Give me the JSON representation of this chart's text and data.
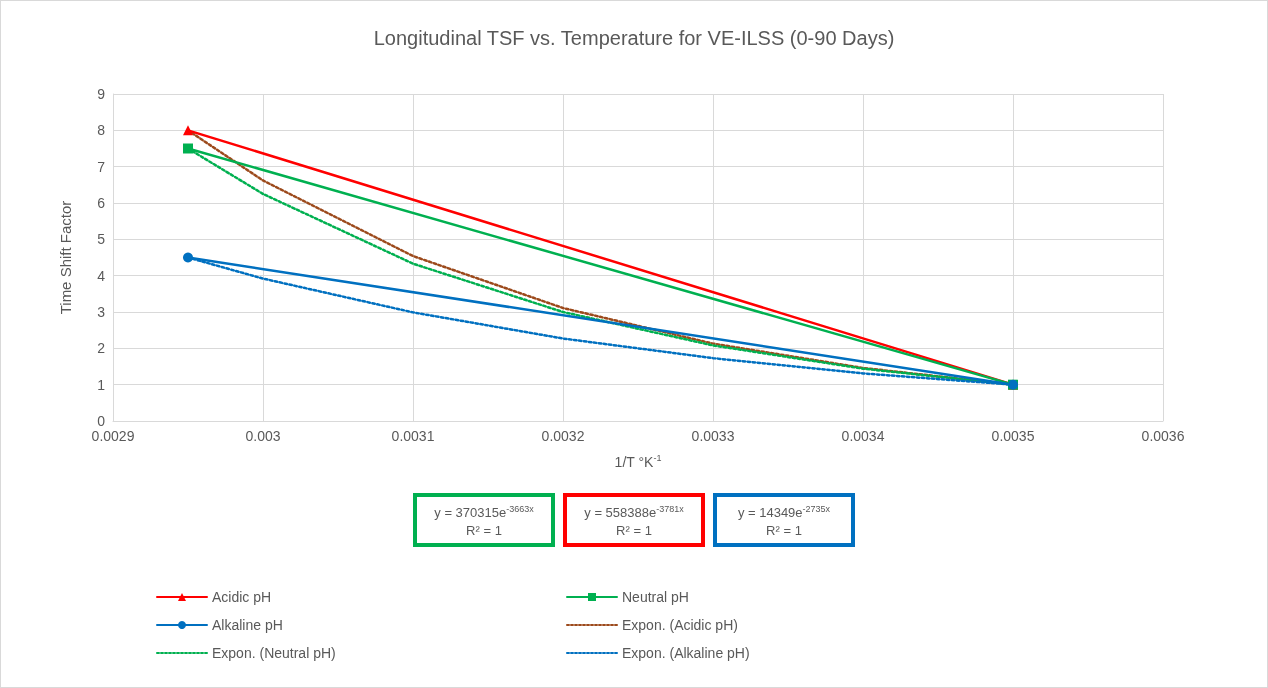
{
  "chart_data": {
    "type": "line",
    "title": "Longitudinal TSF vs. Temperature for VE-ILSS (0-90 Days)",
    "xlabel": "1/T °K$^{-1}$",
    "ylabel": "Time Shift Factor",
    "xlim": [
      0.0029,
      0.0036
    ],
    "xticks": [
      0.0029,
      0.003,
      0.0031,
      0.0032,
      0.0033,
      0.0034,
      0.0035,
      0.0036
    ],
    "ylim": [
      0,
      9
    ],
    "yticks": [
      0,
      1,
      2,
      3,
      4,
      5,
      6,
      7,
      8,
      9
    ],
    "grid": true,
    "legend": "bottom",
    "series": [
      {
        "name": "Acidic pH",
        "color": "#ff0000",
        "marker": "triangle",
        "line_style": "solid",
        "x": [
          0.00295,
          0.0035
        ],
        "values": [
          8,
          1
        ]
      },
      {
        "name": "Neutral pH",
        "color": "#00b050",
        "marker": "square",
        "line_style": "solid",
        "x": [
          0.00295,
          0.0035
        ],
        "values": [
          7.5,
          1
        ]
      },
      {
        "name": "Alkaline pH",
        "color": "#0070c0",
        "marker": "circle",
        "line_style": "solid",
        "x": [
          0.00295,
          0.0035
        ],
        "values": [
          4.5,
          1
        ]
      },
      {
        "name": "Expon. (Acidic pH)",
        "color": "#9c4a1c",
        "marker": "none",
        "line_style": "dotted",
        "x": [
          0.00295,
          0.003,
          0.0031,
          0.0032,
          0.0033,
          0.0034,
          0.0035
        ],
        "values": [
          8,
          6.62,
          4.54,
          3.11,
          2.13,
          1.46,
          1
        ]
      },
      {
        "name": "Expon. (Neutral pH)",
        "color": "#00b050",
        "marker": "none",
        "line_style": "dotted",
        "x": [
          0.00295,
          0.003,
          0.0031,
          0.0032,
          0.0033,
          0.0034,
          0.0035
        ],
        "values": [
          7.5,
          6.25,
          4.33,
          3.0,
          2.08,
          1.44,
          1
        ]
      },
      {
        "name": "Expon. (Alkaline pH)",
        "color": "#0070c0",
        "marker": "none",
        "line_style": "dotted",
        "x": [
          0.00295,
          0.003,
          0.0031,
          0.0032,
          0.0033,
          0.0034,
          0.0035
        ],
        "values": [
          4.5,
          3.92,
          2.99,
          2.27,
          1.73,
          1.31,
          1
        ]
      }
    ],
    "annotations": [
      "y = 370315e$^{-3663x}$",
      "R² = 1",
      "y = 558388e$^{-3781x}$",
      "R² = 1",
      "y = 14349e$^{-2735x}$",
      "R² = 1"
    ]
  }
}
